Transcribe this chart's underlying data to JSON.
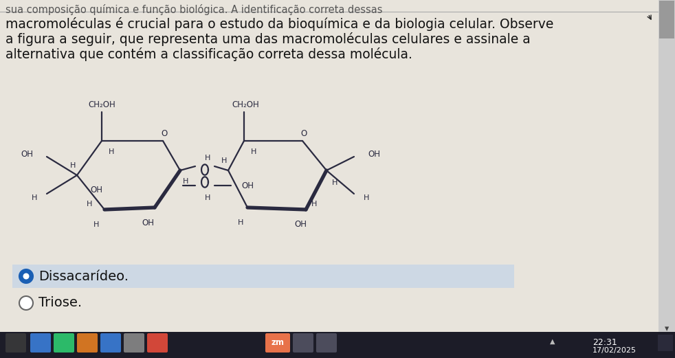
{
  "bg_color": "#e8e4dc",
  "content_bg": "#e8e4dc",
  "header_line1": "sua composição química e função biológica. A identificação correta dessas",
  "header_line2": "macromoléculas é crucial para o estudo da bioquímica e da biologia celular. Observe",
  "header_line3": "a figura a seguir, que representa uma das macromoléculas celulares e assinale a",
  "header_line4": "alternativa que contém a classificação correta dessa molécula.",
  "header_font_size": 13.5,
  "header_color": "#111111",
  "option1_text": "Dissacarídeo.",
  "option2_text": "Triose.",
  "time_text": "22:31",
  "date_text": "17/02/2025",
  "mol_color": "#2a2a40",
  "mol_lw": 1.6,
  "mol_lw_bold": 3.8
}
